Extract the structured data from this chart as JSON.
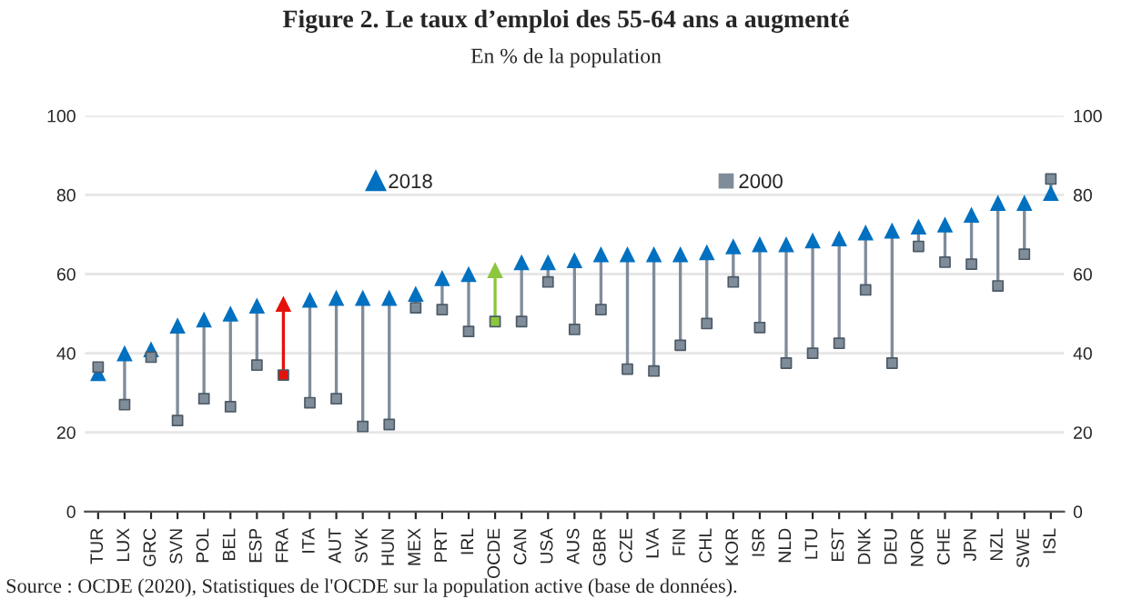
{
  "chart_data": {
    "type": "scatter",
    "title": "Figure 2. Le taux d’emploi des 55-64 ans a augmenté",
    "subtitle": "En % de la population",
    "annotations": [
      "Source : OCDE (2020), Statistiques de l'OCDE sur la population active (base de données)."
    ],
    "categories": [
      "TUR",
      "LUX",
      "GRC",
      "SVN",
      "POL",
      "BEL",
      "ESP",
      "FRA",
      "ITA",
      "AUT",
      "SVK",
      "HUN",
      "MEX",
      "PRT",
      "IRL",
      "OCDE",
      "CAN",
      "USA",
      "AUS",
      "GBR",
      "CZE",
      "LVA",
      "FIN",
      "CHL",
      "KOR",
      "ISR",
      "NLD",
      "LTU",
      "EST",
      "DNK",
      "DEU",
      "NOR",
      "CHE",
      "JPN",
      "NZL",
      "SWE",
      "ISL"
    ],
    "series": [
      {
        "name": "2018",
        "marker": "triangle",
        "color": "#0070c0",
        "colors": [
          "#0070c0",
          "#0070c0",
          "#0070c0",
          "#0070c0",
          "#0070c0",
          "#0070c0",
          "#0070c0",
          "#e3120b",
          "#0070c0",
          "#0070c0",
          "#0070c0",
          "#0070c0",
          "#0070c0",
          "#0070c0",
          "#0070c0",
          "#8cc63f",
          "#0070c0",
          "#0070c0",
          "#0070c0",
          "#0070c0",
          "#0070c0",
          "#0070c0",
          "#0070c0",
          "#0070c0",
          "#0070c0",
          "#0070c0",
          "#0070c0",
          "#0070c0",
          "#0070c0",
          "#0070c0",
          "#0070c0",
          "#0070c0",
          "#0070c0",
          "#0070c0",
          "#0070c0",
          "#0070c0",
          "#0070c0"
        ],
        "values": [
          35,
          40,
          41,
          47,
          48.5,
          50,
          52,
          52.5,
          53.5,
          54,
          54,
          54,
          55,
          59,
          60,
          61,
          63,
          63,
          63.5,
          65,
          65,
          65,
          65,
          65.5,
          67,
          67.5,
          67.5,
          68.5,
          69,
          70.5,
          71,
          72,
          72.5,
          75,
          78,
          78,
          80.5
        ]
      },
      {
        "name": "2000",
        "marker": "square",
        "color": "#7f8c9a",
        "colors": [
          "#7f8c9a",
          "#7f8c9a",
          "#7f8c9a",
          "#7f8c9a",
          "#7f8c9a",
          "#7f8c9a",
          "#7f8c9a",
          "#e3120b",
          "#7f8c9a",
          "#7f8c9a",
          "#7f8c9a",
          "#7f8c9a",
          "#7f8c9a",
          "#7f8c9a",
          "#7f8c9a",
          "#8cc63f",
          "#7f8c9a",
          "#7f8c9a",
          "#7f8c9a",
          "#7f8c9a",
          "#7f8c9a",
          "#7f8c9a",
          "#7f8c9a",
          "#7f8c9a",
          "#7f8c9a",
          "#7f8c9a",
          "#7f8c9a",
          "#7f8c9a",
          "#7f8c9a",
          "#7f8c9a",
          "#7f8c9a",
          "#7f8c9a",
          "#7f8c9a",
          "#7f8c9a",
          "#7f8c9a",
          "#7f8c9a",
          "#7f8c9a"
        ],
        "values": [
          36.5,
          27,
          39,
          23,
          28.5,
          26.5,
          37,
          34.5,
          27.5,
          28.5,
          21.5,
          22,
          51.5,
          51,
          45.5,
          48,
          48,
          58,
          46,
          51,
          36,
          35.5,
          42,
          47.5,
          58,
          46.5,
          37.5,
          40,
          42.5,
          56,
          37.5,
          67,
          63,
          62.5,
          57,
          65,
          84
        ]
      }
    ],
    "ylim": [
      0,
      100
    ],
    "yticks": [
      0,
      20,
      40,
      60,
      80,
      100
    ],
    "y2lim": [
      0,
      100
    ],
    "y2ticks": [
      0,
      20,
      40,
      60,
      80,
      100
    ],
    "grid": "y",
    "legend": "top"
  }
}
